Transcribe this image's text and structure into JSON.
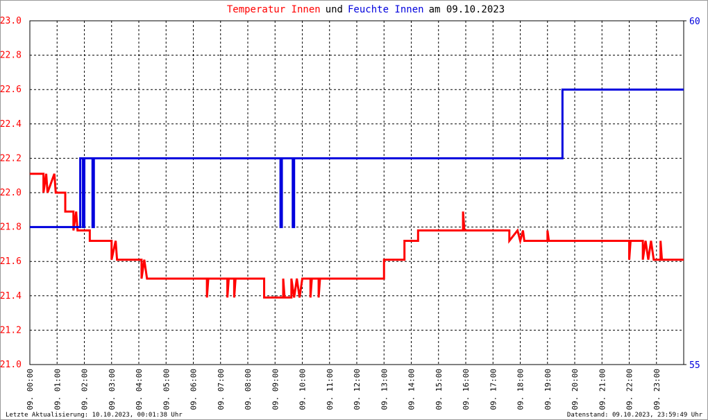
{
  "chart_data": {
    "type": "line",
    "title_connector": "und",
    "title_suffix": "am 09.10.2023",
    "footer_left": "Letzte Aktualisierung: 10.10.2023, 00:01:38 Uhr",
    "footer_right": "Datenstand: 09.10.2023, 23:59:49 Uhr",
    "xlim": [
      0,
      24
    ],
    "xticks": [
      {
        "value": 0,
        "label": "09. 00:00"
      },
      {
        "value": 1,
        "label": "09. 01:00"
      },
      {
        "value": 2,
        "label": "09. 02:00"
      },
      {
        "value": 3,
        "label": "09. 03:00"
      },
      {
        "value": 4,
        "label": "09. 04:00"
      },
      {
        "value": 5,
        "label": "09. 05:00"
      },
      {
        "value": 6,
        "label": "09. 06:00"
      },
      {
        "value": 7,
        "label": "09. 07:00"
      },
      {
        "value": 8,
        "label": "09. 08:00"
      },
      {
        "value": 9,
        "label": "09. 09:00"
      },
      {
        "value": 10,
        "label": "09. 10:00"
      },
      {
        "value": 11,
        "label": "09. 11:00"
      },
      {
        "value": 12,
        "label": "09. 12:00"
      },
      {
        "value": 13,
        "label": "09. 13:00"
      },
      {
        "value": 14,
        "label": "09. 14:00"
      },
      {
        "value": 15,
        "label": "09. 15:00"
      },
      {
        "value": 16,
        "label": "09. 16:00"
      },
      {
        "value": 17,
        "label": "09. 17:00"
      },
      {
        "value": 18,
        "label": "09. 18:00"
      },
      {
        "value": 19,
        "label": "09. 19:00"
      },
      {
        "value": 20,
        "label": "09. 20:00"
      },
      {
        "value": 21,
        "label": "09. 21:00"
      },
      {
        "value": 22,
        "label": "09. 22:00"
      },
      {
        "value": 23,
        "label": "09. 23:00"
      }
    ],
    "ylim": [
      21,
      23
    ],
    "yticks": [
      {
        "value": 21,
        "label": "21.0"
      },
      21.2,
      21.4,
      21.6,
      21.8,
      {
        "value": 22,
        "label": "22.0"
      },
      22.2,
      22.4,
      22.6,
      22.8,
      {
        "value": 23,
        "label": "23.0"
      }
    ],
    "y2lim": [
      55,
      60
    ],
    "y2ticks": [
      55,
      60
    ],
    "grid": true,
    "series": [
      {
        "name": "Temperatur Innen",
        "color": "#ff0000",
        "axis": "y",
        "x": [
          0,
          0.5,
          0.5,
          0.6,
          0.65,
          0.9,
          0.95,
          1.3,
          1.3,
          1.6,
          1.6,
          1.7,
          1.75,
          2.2,
          2.2,
          3.0,
          3.0,
          3.15,
          3.2,
          4.1,
          4.1,
          4.2,
          4.3,
          6.5,
          6.5,
          6.55,
          7.25,
          7.25,
          7.3,
          7.5,
          7.5,
          7.55,
          8.6,
          8.6,
          9.3,
          9.3,
          9.35,
          9.6,
          9.6,
          9.7,
          9.8,
          9.9,
          10,
          10.3,
          10.3,
          10.35,
          10.6,
          10.6,
          10.65,
          13.0,
          13.0,
          13.75,
          13.75,
          14.25,
          14.25,
          15.9,
          15.9,
          15.95,
          17.6,
          17.6,
          17.9,
          18.0,
          18.1,
          18.15,
          19.0,
          19.0,
          19.05,
          22.0,
          22.0,
          22.05,
          22.5,
          22.5,
          22.6,
          22.7,
          22.8,
          22.9,
          23.15,
          23.15,
          23.2,
          24
        ],
        "values": [
          22.11,
          22.11,
          22.0,
          22.11,
          22.0,
          22.11,
          22.0,
          22.0,
          21.89,
          21.89,
          21.78,
          21.89,
          21.78,
          21.78,
          21.72,
          21.72,
          21.61,
          21.72,
          21.61,
          21.61,
          21.5,
          21.61,
          21.5,
          21.5,
          21.39,
          21.5,
          21.5,
          21.39,
          21.5,
          21.5,
          21.39,
          21.5,
          21.5,
          21.39,
          21.39,
          21.5,
          21.39,
          21.39,
          21.5,
          21.39,
          21.5,
          21.39,
          21.5,
          21.5,
          21.39,
          21.5,
          21.5,
          21.39,
          21.5,
          21.5,
          21.61,
          21.61,
          21.72,
          21.72,
          21.78,
          21.78,
          21.89,
          21.78,
          21.78,
          21.72,
          21.78,
          21.72,
          21.78,
          21.72,
          21.72,
          21.78,
          21.72,
          21.72,
          21.61,
          21.72,
          21.72,
          21.61,
          21.72,
          21.61,
          21.72,
          21.61,
          21.61,
          21.72,
          21.61,
          21.61
        ]
      },
      {
        "name": "Feuchte Innen",
        "color": "#0000dd",
        "axis": "y2",
        "x": [
          0,
          1.85,
          1.85,
          1.95,
          1.95,
          2.0,
          2.0,
          2.3,
          2.3,
          2.35,
          2.35,
          9.2,
          9.2,
          9.25,
          9.25,
          9.65,
          9.65,
          9.7,
          9.7,
          19.55,
          19.55,
          24
        ],
        "values": [
          57,
          57,
          58,
          58,
          57,
          57,
          58,
          58,
          57,
          57,
          58,
          58,
          57,
          57,
          58,
          58,
          57,
          57,
          58,
          58,
          59,
          59
        ]
      }
    ]
  }
}
